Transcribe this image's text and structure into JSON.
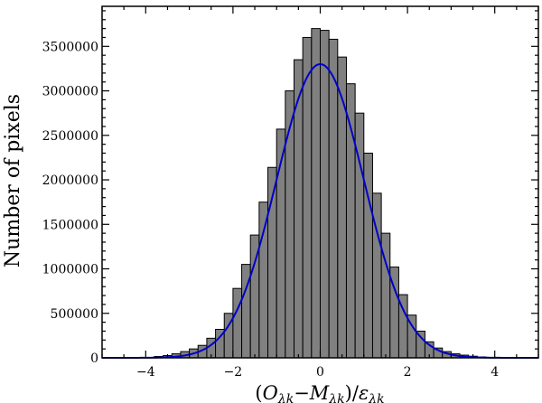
{
  "chart_data": {
    "type": "bar",
    "title": "",
    "xlabel": "(Oλk−Mλk)/ελk",
    "xlabel_parts": {
      "open": "(",
      "o": "O",
      "m": "M",
      "e": "ε",
      "sub": "λk",
      "minus": "−",
      "close": ")/"
    },
    "ylabel": "Number of pixels",
    "xlim": [
      -5,
      5
    ],
    "ylim": [
      0,
      3950000
    ],
    "xticks": [
      -4,
      -2,
      0,
      2,
      4
    ],
    "xtick_labels": [
      "−4",
      "−2",
      "0",
      "2",
      "4"
    ],
    "yticks": [
      0,
      500000,
      1000000,
      1500000,
      2000000,
      2500000,
      3000000,
      3500000
    ],
    "ytick_labels": [
      "0",
      "500000",
      "1000000",
      "1500000",
      "2000000",
      "2500000",
      "3000000",
      "3500000"
    ],
    "grid": false,
    "bin_width": 0.2,
    "bins_center": [
      -4.9,
      -4.7,
      -4.5,
      -4.3,
      -4.1,
      -3.9,
      -3.7,
      -3.5,
      -3.3,
      -3.1,
      -2.9,
      -2.7,
      -2.5,
      -2.3,
      -2.1,
      -1.9,
      -1.7,
      -1.5,
      -1.3,
      -1.1,
      -0.9,
      -0.7,
      -0.5,
      -0.3,
      -0.1,
      0.1,
      0.3,
      0.5,
      0.7,
      0.9,
      1.1,
      1.3,
      1.5,
      1.7,
      1.9,
      2.1,
      2.3,
      2.5,
      2.7,
      2.9,
      3.1,
      3.3,
      3.5,
      3.7,
      3.9,
      4.1,
      4.3,
      4.5,
      4.7,
      4.9
    ],
    "counts": [
      0,
      0,
      0,
      0,
      0,
      5000,
      15000,
      25000,
      45000,
      70000,
      100000,
      140000,
      220000,
      320000,
      500000,
      780000,
      1050000,
      1380000,
      1750000,
      2140000,
      2570000,
      3000000,
      3350000,
      3600000,
      3700000,
      3680000,
      3580000,
      3380000,
      3080000,
      2750000,
      2300000,
      1850000,
      1400000,
      1020000,
      710000,
      480000,
      300000,
      180000,
      110000,
      70000,
      45000,
      30000,
      18000,
      10000,
      5000,
      0,
      0,
      0,
      0,
      0
    ],
    "bar_color": "#808080",
    "series": [
      {
        "type": "gaussian-fit",
        "color": "#0000cc",
        "amplitude": 3300000,
        "mean": 0.0,
        "sigma": 1.0
      }
    ]
  }
}
